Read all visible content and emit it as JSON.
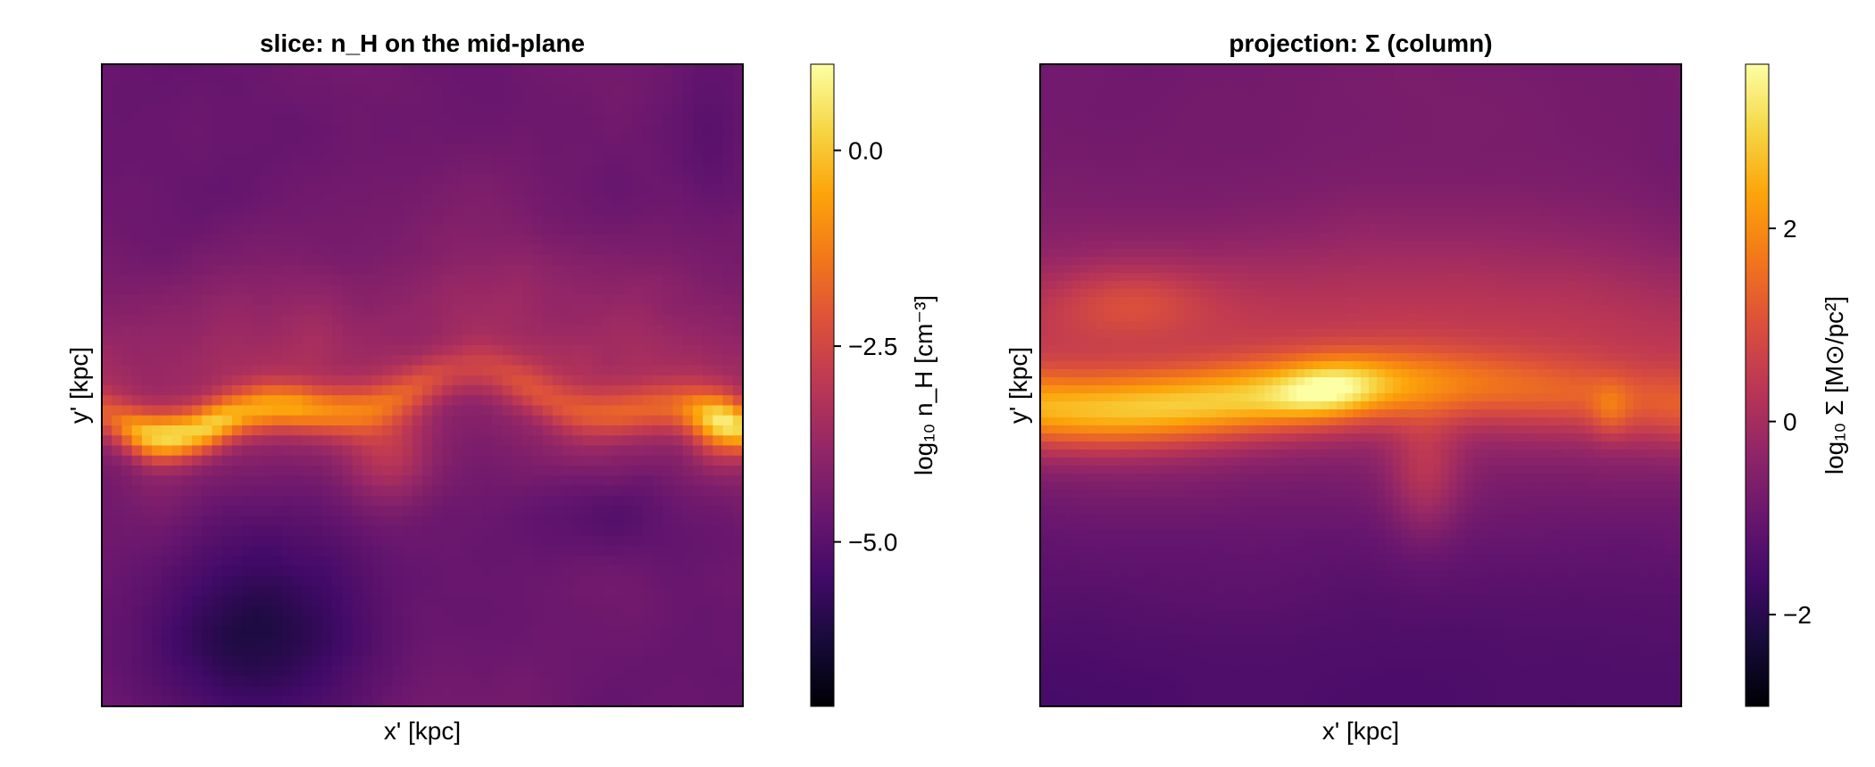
{
  "chart_data": [
    {
      "type": "heatmap",
      "title": "slice: n_H on the mid-plane",
      "xlabel": "x' [kpc]",
      "ylabel": "y' [kpc]",
      "colormap": "inferno",
      "colorbar": {
        "label": "log₁₀ n_H [cm⁻³]",
        "range": [
          -7.1,
          1.1
        ],
        "ticks": [
          0.0,
          -2.5,
          -5.0
        ],
        "tick_labels": [
          "0.0",
          "−2.5",
          "−5.0"
        ]
      }
    },
    {
      "type": "heatmap",
      "title": "projection: Σ (column)",
      "xlabel": "x' [kpc]",
      "ylabel": "y' [kpc]",
      "colormap": "inferno",
      "colorbar": {
        "label": "log₁₀ Σ [M⊙/pc²]",
        "range": [
          -2.95,
          3.7
        ],
        "ticks": [
          2,
          0,
          -2
        ],
        "tick_labels": [
          "2",
          "0",
          "−2"
        ]
      }
    }
  ]
}
